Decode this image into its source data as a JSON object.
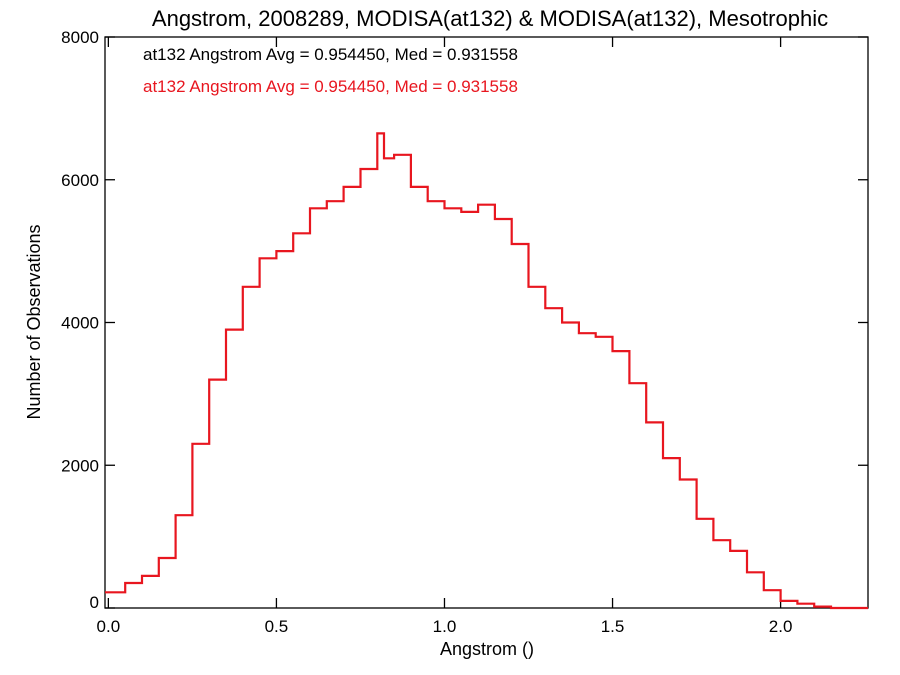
{
  "chart_data": {
    "type": "histogram",
    "title": "Angstrom, 2008289, MODISA(at132) & MODISA(at132), Mesotrophic",
    "xlabel": "Angstrom ()",
    "ylabel": "Number of Observations",
    "xlim": [
      -0.01,
      2.26
    ],
    "ylim": [
      0,
      8000
    ],
    "xticks": [
      "0.0",
      "0.5",
      "1.0",
      "1.5",
      "2.0"
    ],
    "yticks": [
      "0",
      "2000",
      "4000",
      "6000",
      "8000"
    ],
    "grid": false,
    "legend_position": "top-left",
    "annotations": [
      {
        "text": "at132 Angstrom Avg = 0.954450, Med = 0.931558",
        "color": "#000000"
      },
      {
        "text": "at132 Angstrom Avg = 0.954450, Med = 0.931558",
        "color": "#e8161f"
      }
    ],
    "series": [
      {
        "color": "#e8161f",
        "step": "post",
        "x": [
          -0.01,
          0.05,
          0.1,
          0.15,
          0.2,
          0.25,
          0.3,
          0.35,
          0.4,
          0.45,
          0.5,
          0.55,
          0.6,
          0.65,
          0.7,
          0.75,
          0.8,
          0.82,
          0.85,
          0.9,
          0.95,
          1.0,
          1.05,
          1.1,
          1.15,
          1.2,
          1.25,
          1.3,
          1.35,
          1.4,
          1.45,
          1.5,
          1.55,
          1.6,
          1.65,
          1.7,
          1.75,
          1.8,
          1.85,
          1.9,
          1.95,
          2.0,
          2.05,
          2.1,
          2.15,
          2.26
        ],
        "y": [
          220,
          350,
          450,
          700,
          1300,
          2300,
          3200,
          3900,
          4500,
          4900,
          5000,
          5250,
          5600,
          5700,
          5900,
          6150,
          6650,
          6300,
          6350,
          5900,
          5700,
          5600,
          5550,
          5650,
          5450,
          5100,
          4500,
          4200,
          4000,
          3850,
          3800,
          3600,
          3150,
          2600,
          2100,
          1800,
          1250,
          950,
          800,
          500,
          250,
          100,
          60,
          20,
          0,
          0
        ]
      }
    ]
  }
}
